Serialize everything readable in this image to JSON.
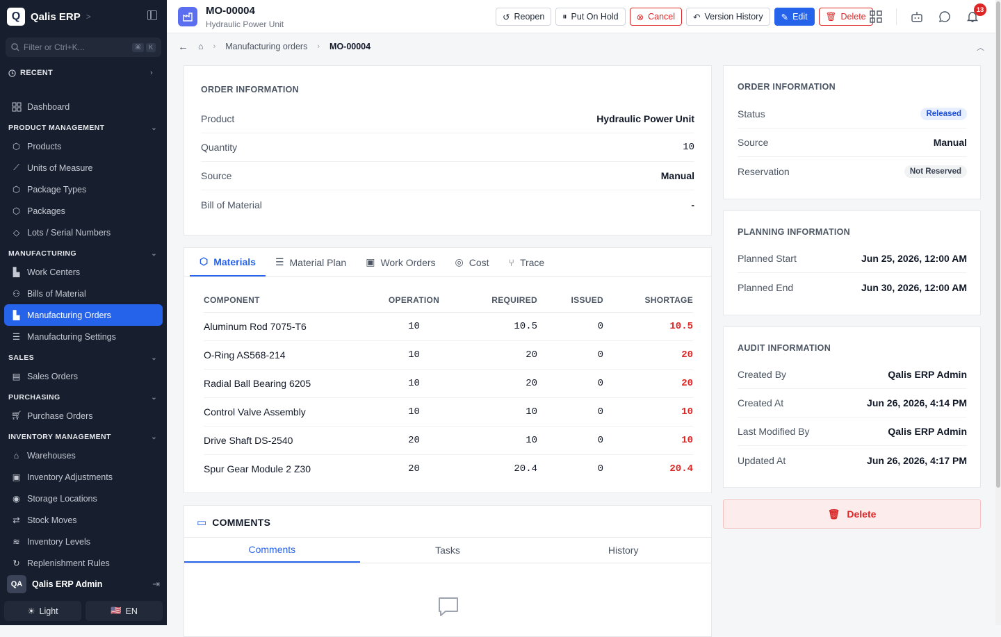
{
  "app": {
    "name": "Qalis ERP",
    "logo_letter": "Q"
  },
  "sidebar": {
    "filter_placeholder": "Filter or Ctrl+K...",
    "kbd": [
      "⌘",
      "K"
    ],
    "recent_label": "RECENT",
    "dashboard": "Dashboard",
    "sections": [
      {
        "title": "PRODUCT MANAGEMENT",
        "items": [
          "Products",
          "Units of Measure",
          "Package Types",
          "Packages",
          "Lots / Serial Numbers"
        ]
      },
      {
        "title": "MANUFACTURING",
        "items": [
          "Work Centers",
          "Bills of Material",
          "Manufacturing Orders",
          "Manufacturing Settings"
        ]
      },
      {
        "title": "SALES",
        "items": [
          "Sales Orders"
        ]
      },
      {
        "title": "PURCHASING",
        "items": [
          "Purchase Orders"
        ]
      },
      {
        "title": "INVENTORY MANAGEMENT",
        "items": [
          "Warehouses",
          "Inventory Adjustments",
          "Storage Locations",
          "Stock Moves",
          "Inventory Levels",
          "Replenishment Rules"
        ]
      }
    ],
    "active_item": "Manufacturing Orders",
    "user": {
      "initials": "QA",
      "name": "Qalis ERP Admin"
    },
    "theme_label": "Light",
    "lang_label": "EN",
    "lang_flag": "🇺🇸"
  },
  "header": {
    "title": "MO-00004",
    "subtitle": "Hydraulic Power Unit",
    "actions": {
      "reopen": "Reopen",
      "hold": "Put On Hold",
      "cancel": "Cancel",
      "history": "Version History",
      "edit": "Edit",
      "delete": "Delete"
    },
    "notification_count": "13"
  },
  "breadcrumb": {
    "parent": "Manufacturing orders",
    "current": "MO-00004"
  },
  "order_info": {
    "title": "ORDER INFORMATION",
    "rows": [
      {
        "k": "Product",
        "v": "Hydraulic Power Unit"
      },
      {
        "k": "Quantity",
        "v": "10"
      },
      {
        "k": "Source",
        "v": "Manual"
      },
      {
        "k": "Bill of Material",
        "v": "-"
      }
    ]
  },
  "tabs": [
    "Materials",
    "Material Plan",
    "Work Orders",
    "Cost",
    "Trace"
  ],
  "materials": {
    "columns": [
      "COMPONENT",
      "OPERATION",
      "REQUIRED",
      "ISSUED",
      "SHORTAGE"
    ],
    "rows": [
      [
        "Aluminum Rod 7075-T6",
        "10",
        "10.5",
        "0",
        "10.5"
      ],
      [
        "O-Ring AS568-214",
        "10",
        "20",
        "0",
        "20"
      ],
      [
        "Radial Ball Bearing 6205",
        "10",
        "20",
        "0",
        "20"
      ],
      [
        "Control Valve Assembly",
        "10",
        "10",
        "0",
        "10"
      ],
      [
        "Drive Shaft DS-2540",
        "20",
        "10",
        "0",
        "10"
      ],
      [
        "Spur Gear Module 2 Z30",
        "20",
        "20.4",
        "0",
        "20.4"
      ]
    ]
  },
  "comments": {
    "title": "COMMENTS",
    "tabs": [
      "Comments",
      "Tasks",
      "History"
    ]
  },
  "right_order_info": {
    "title": "ORDER INFORMATION",
    "status_label": "Status",
    "status_value": "Released",
    "source_label": "Source",
    "source_value": "Manual",
    "reservation_label": "Reservation",
    "reservation_value": "Not Reserved"
  },
  "planning": {
    "title": "PLANNING INFORMATION",
    "rows": [
      {
        "k": "Planned Start",
        "v": "Jun 25, 2026, 12:00 AM"
      },
      {
        "k": "Planned End",
        "v": "Jun 30, 2026, 12:00 AM"
      }
    ]
  },
  "audit": {
    "title": "AUDIT INFORMATION",
    "rows": [
      {
        "k": "Created By",
        "v": "Qalis ERP Admin"
      },
      {
        "k": "Created At",
        "v": "Jun 26, 2026, 4:14 PM"
      },
      {
        "k": "Last Modified By",
        "v": "Qalis ERP Admin"
      },
      {
        "k": "Updated At",
        "v": "Jun 26, 2026, 4:17 PM"
      }
    ]
  },
  "delete_big_label": "Delete",
  "colors": {
    "accent": "#2563eb",
    "danger": "#dc2626",
    "sidebar_bg": "#171e2e"
  }
}
